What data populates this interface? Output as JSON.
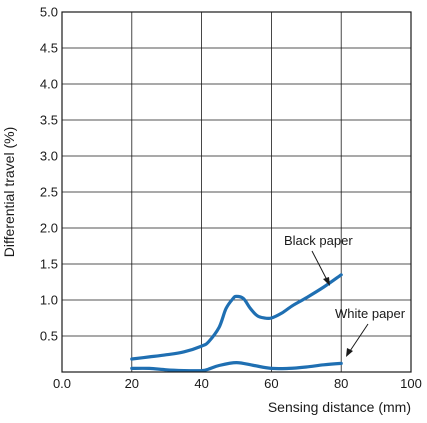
{
  "chart_data": {
    "type": "line",
    "title": "",
    "xlabel": "Sensing distance (mm)",
    "ylabel": "Differential travel (%)",
    "xlim": [
      0,
      100
    ],
    "ylim": [
      0,
      5.0
    ],
    "x_tick_labels": [
      "0.0",
      "20",
      "40",
      "60",
      "80",
      "100"
    ],
    "x_tick_values": [
      0,
      20,
      40,
      60,
      80,
      100
    ],
    "y_tick_labels": [
      "0.5",
      "1.0",
      "1.5",
      "2.0",
      "2.5",
      "3.0",
      "3.5",
      "4.0",
      "4.5",
      "5.0"
    ],
    "y_tick_values": [
      0.5,
      1.0,
      1.5,
      2.0,
      2.5,
      3.0,
      3.5,
      4.0,
      4.5,
      5.0
    ],
    "grid": true,
    "series_color": "#1f6fb2",
    "series": [
      {
        "name": "Black paper",
        "x": [
          20,
          25,
          30,
          35,
          40,
          42,
          45,
          47,
          49,
          50,
          52,
          54,
          56,
          58,
          60,
          63,
          66,
          70,
          75,
          80
        ],
        "y": [
          0.18,
          0.21,
          0.24,
          0.28,
          0.36,
          0.42,
          0.62,
          0.88,
          1.02,
          1.05,
          1.02,
          0.88,
          0.78,
          0.75,
          0.75,
          0.82,
          0.92,
          1.03,
          1.18,
          1.35
        ]
      },
      {
        "name": "White paper",
        "x": [
          20,
          25,
          30,
          35,
          40,
          42,
          45,
          50,
          55,
          60,
          65,
          70,
          75,
          80
        ],
        "y": [
          0.05,
          0.05,
          0.03,
          0.02,
          0.02,
          0.04,
          0.09,
          0.13,
          0.09,
          0.05,
          0.05,
          0.07,
          0.1,
          0.12
        ]
      }
    ],
    "annotations": [
      {
        "text": "Black paper",
        "target_series": 0
      },
      {
        "text": "White paper",
        "target_series": 1
      }
    ]
  }
}
